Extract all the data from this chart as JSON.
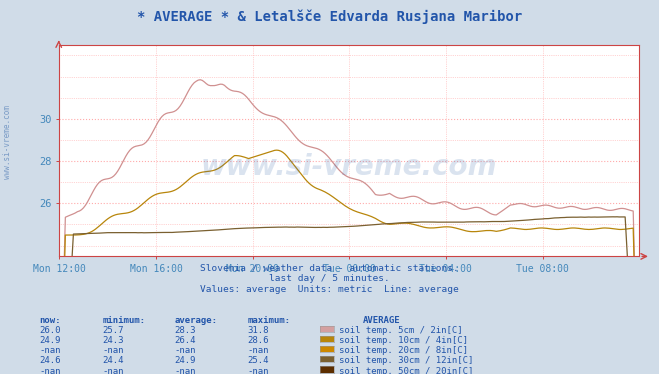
{
  "title": "* AVERAGE * & Letalšče Edvarda Rusjana Maribor",
  "bg_color": "#d0dce8",
  "plot_bg_color": "#ffffff",
  "grid_color_dotted": "#ffaaaa",
  "grid_color_solid": "#ff8888",
  "xlabel_color": "#4488bb",
  "ylabel_color": "#4488bb",
  "title_color": "#2255aa",
  "footer_lines": [
    "Slovenia / weather data - automatic stations.",
    "last day / 5 minutes.",
    "Values: average  Units: metric  Line: average"
  ],
  "xtick_labels": [
    "Mon 12:00",
    "Mon 16:00",
    "Mon 20:00",
    "Tue 00:00",
    "Tue 04:00",
    "Tue 08:00"
  ],
  "xtick_positions": [
    0,
    48,
    96,
    144,
    192,
    240
  ],
  "ytick_labels": [
    "26",
    "28",
    "30"
  ],
  "ytick_positions": [
    26,
    28,
    30
  ],
  "ylim": [
    23.5,
    33.5
  ],
  "xlim": [
    0,
    288
  ],
  "series_colors": [
    "#d09090",
    "#b8860b",
    "#cc8800",
    "#7a6030",
    "#5c2e00"
  ],
  "legend_colors": [
    "#d4a0a0",
    "#b8860b",
    "#cc8800",
    "#7a6030",
    "#5c2e00"
  ],
  "legend_labels": [
    "soil temp. 5cm / 2in[C]",
    "soil temp. 10cm / 4in[C]",
    "soil temp. 20cm / 8in[C]",
    "soil temp. 30cm / 12in[C]",
    "soil temp. 50cm / 20in[C]"
  ],
  "table_headers": [
    "now:",
    "minimum:",
    "average:",
    "maximum:",
    "AVERAGE"
  ],
  "table_rows": [
    [
      "26.0",
      "25.7",
      "28.3",
      "31.8",
      "soil temp. 5cm / 2in[C]"
    ],
    [
      "24.9",
      "24.3",
      "26.4",
      "28.6",
      "soil temp. 10cm / 4in[C]"
    ],
    [
      "-nan",
      "-nan",
      "-nan",
      "-nan",
      "soil temp. 20cm / 8in[C]"
    ],
    [
      "24.6",
      "24.4",
      "24.9",
      "25.4",
      "soil temp. 30cm / 12in[C]"
    ],
    [
      "-nan",
      "-nan",
      "-nan",
      "-nan",
      "soil temp. 50cm / 20in[C]"
    ]
  ],
  "watermark_text": "www.si-vreme.com",
  "watermark_color": "#3366aa",
  "watermark_alpha": 0.18,
  "sidebar_text": "www.si-vreme.com",
  "sidebar_color": "#3366aa",
  "sidebar_alpha": 0.55
}
